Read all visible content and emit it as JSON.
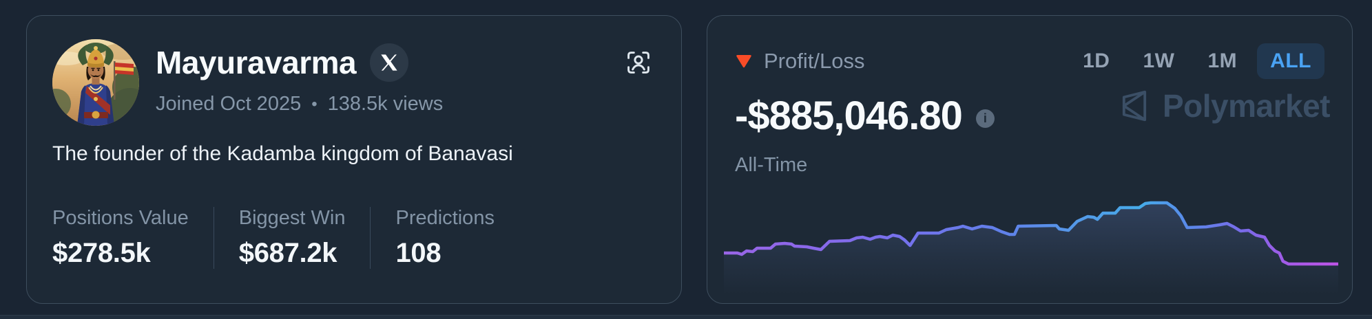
{
  "profile": {
    "name": "Mayuravarma",
    "joined": "Joined Oct 2025",
    "separator": "•",
    "views": "138.5k views",
    "bio": "The founder of the Kadamba kingdom of Banavasi",
    "stats": [
      {
        "label": "Positions Value",
        "value": "$278.5k"
      },
      {
        "label": "Biggest Win",
        "value": "$687.2k"
      },
      {
        "label": "Predictions",
        "value": "108"
      }
    ],
    "icons": {
      "badge": "x-logo-icon",
      "top_right": "person-scan-icon"
    }
  },
  "pnl": {
    "title": "Profit/Loss",
    "value": "-$885,046.80",
    "period_label": "All-Time",
    "info_glyph": "i",
    "timeframes": [
      {
        "label": "1D",
        "active": false
      },
      {
        "label": "1W",
        "active": false
      },
      {
        "label": "1M",
        "active": false
      },
      {
        "label": "ALL",
        "active": true
      }
    ],
    "watermark": "Polymarket",
    "icons": {
      "trend": "loss-triangle-icon",
      "brand": "polymarket-logo-icon"
    }
  },
  "colors": {
    "page_bg": "#1a2533",
    "card_bg": "#1d2936",
    "card_border": "#3e4e5e",
    "text_primary": "#f7fafc",
    "text_muted": "#8697a9",
    "accent_blue": "#4aa3f4",
    "loss_red": "#f94c27",
    "watermark": "#3b4f66",
    "info_icon_bg": "#5b6b7d"
  },
  "chart_data": {
    "type": "line",
    "title": "Profit/Loss",
    "period": "All-Time",
    "final_value_label": "-$885,046.80",
    "axes_hidden": true,
    "legend": "none",
    "grid": false,
    "points_format": "normalized [x 0-1 left→right, y 0-1 top→bottom of plot band]",
    "points": [
      [
        0.0,
        0.802
      ],
      [
        0.022,
        0.802
      ],
      [
        0.029,
        0.823
      ],
      [
        0.037,
        0.771
      ],
      [
        0.047,
        0.781
      ],
      [
        0.054,
        0.729
      ],
      [
        0.076,
        0.729
      ],
      [
        0.084,
        0.667
      ],
      [
        0.099,
        0.656
      ],
      [
        0.11,
        0.667
      ],
      [
        0.115,
        0.698
      ],
      [
        0.135,
        0.708
      ],
      [
        0.146,
        0.729
      ],
      [
        0.158,
        0.75
      ],
      [
        0.172,
        0.625
      ],
      [
        0.205,
        0.615
      ],
      [
        0.216,
        0.573
      ],
      [
        0.226,
        0.563
      ],
      [
        0.238,
        0.594
      ],
      [
        0.247,
        0.563
      ],
      [
        0.254,
        0.552
      ],
      [
        0.266,
        0.573
      ],
      [
        0.275,
        0.531
      ],
      [
        0.286,
        0.552
      ],
      [
        0.294,
        0.604
      ],
      [
        0.303,
        0.688
      ],
      [
        0.316,
        0.5
      ],
      [
        0.35,
        0.5
      ],
      [
        0.362,
        0.448
      ],
      [
        0.381,
        0.417
      ],
      [
        0.389,
        0.396
      ],
      [
        0.404,
        0.438
      ],
      [
        0.42,
        0.396
      ],
      [
        0.437,
        0.417
      ],
      [
        0.452,
        0.479
      ],
      [
        0.465,
        0.521
      ],
      [
        0.473,
        0.521
      ],
      [
        0.479,
        0.396
      ],
      [
        0.541,
        0.385
      ],
      [
        0.546,
        0.438
      ],
      [
        0.561,
        0.458
      ],
      [
        0.575,
        0.323
      ],
      [
        0.592,
        0.25
      ],
      [
        0.602,
        0.26
      ],
      [
        0.608,
        0.292
      ],
      [
        0.617,
        0.198
      ],
      [
        0.637,
        0.198
      ],
      [
        0.645,
        0.115
      ],
      [
        0.676,
        0.115
      ],
      [
        0.686,
        0.052
      ],
      [
        0.695,
        0.042
      ],
      [
        0.721,
        0.042
      ],
      [
        0.734,
        0.125
      ],
      [
        0.744,
        0.24
      ],
      [
        0.754,
        0.417
      ],
      [
        0.785,
        0.406
      ],
      [
        0.807,
        0.375
      ],
      [
        0.819,
        0.354
      ],
      [
        0.83,
        0.406
      ],
      [
        0.841,
        0.469
      ],
      [
        0.854,
        0.458
      ],
      [
        0.866,
        0.531
      ],
      [
        0.88,
        0.563
      ],
      [
        0.888,
        0.688
      ],
      [
        0.897,
        0.771
      ],
      [
        0.904,
        0.802
      ],
      [
        0.91,
        0.927
      ],
      [
        0.919,
        0.969
      ],
      [
        1.0,
        0.969
      ]
    ],
    "line_gradient": [
      {
        "o": 0.0,
        "c": "#9a66e6"
      },
      {
        "o": 0.12,
        "c": "#8d67e9"
      },
      {
        "o": 0.3,
        "c": "#7472ec"
      },
      {
        "o": 0.45,
        "c": "#6180ea"
      },
      {
        "o": 0.58,
        "c": "#539ae8"
      },
      {
        "o": 0.68,
        "c": "#46abe9"
      },
      {
        "o": 0.76,
        "c": "#5b87e9"
      },
      {
        "o": 0.85,
        "c": "#7b69e9"
      },
      {
        "o": 0.92,
        "c": "#a55ae7"
      },
      {
        "o": 1.0,
        "c": "#bd54e5"
      }
    ],
    "area_gradient": [
      {
        "o": 0.0,
        "c": "rgba(100,126,190,0.30)"
      },
      {
        "o": 0.55,
        "c": "rgba(100,126,190,0.10)"
      },
      {
        "o": 0.92,
        "c": "rgba(100,126,190,0)"
      }
    ]
  }
}
